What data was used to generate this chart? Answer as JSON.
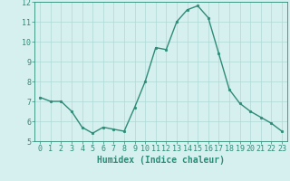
{
  "x": [
    0,
    1,
    2,
    3,
    4,
    5,
    6,
    7,
    8,
    9,
    10,
    11,
    12,
    13,
    14,
    15,
    16,
    17,
    18,
    19,
    20,
    21,
    22,
    23
  ],
  "y": [
    7.2,
    7.0,
    7.0,
    6.5,
    5.7,
    5.4,
    5.7,
    5.6,
    5.5,
    6.7,
    8.0,
    9.7,
    9.6,
    11.0,
    11.6,
    11.8,
    11.2,
    9.4,
    7.6,
    6.9,
    6.5,
    6.2,
    5.9,
    5.5
  ],
  "line_color": "#2e8b77",
  "marker": "o",
  "marker_size": 1.8,
  "bg_color": "#d6f0ef",
  "grid_color": "#afd8d5",
  "xlabel": "Humidex (Indice chaleur)",
  "xlim": [
    -0.5,
    23.5
  ],
  "ylim": [
    5,
    12
  ],
  "yticks": [
    5,
    6,
    7,
    8,
    9,
    10,
    11,
    12
  ],
  "xticks": [
    0,
    1,
    2,
    3,
    4,
    5,
    6,
    7,
    8,
    9,
    10,
    11,
    12,
    13,
    14,
    15,
    16,
    17,
    18,
    19,
    20,
    21,
    22,
    23
  ],
  "xlabel_fontsize": 7,
  "tick_fontsize": 6,
  "tick_color": "#2e8b77",
  "axis_color": "#2e8b77",
  "line_width": 1.0
}
